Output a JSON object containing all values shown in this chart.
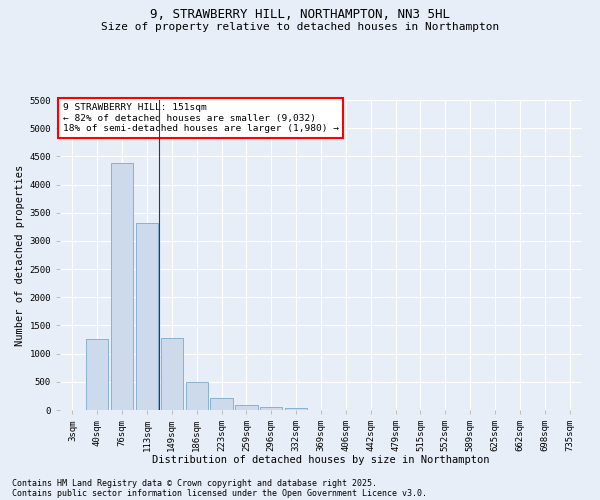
{
  "title1": "9, STRAWBERRY HILL, NORTHAMPTON, NN3 5HL",
  "title2": "Size of property relative to detached houses in Northampton",
  "xlabel": "Distribution of detached houses by size in Northampton",
  "ylabel": "Number of detached properties",
  "categories": [
    "3sqm",
    "40sqm",
    "76sqm",
    "113sqm",
    "149sqm",
    "186sqm",
    "223sqm",
    "259sqm",
    "296sqm",
    "332sqm",
    "369sqm",
    "406sqm",
    "442sqm",
    "479sqm",
    "515sqm",
    "552sqm",
    "589sqm",
    "625sqm",
    "662sqm",
    "698sqm",
    "735sqm"
  ],
  "values": [
    0,
    1260,
    4380,
    3310,
    1270,
    500,
    210,
    90,
    55,
    35,
    0,
    0,
    0,
    0,
    0,
    0,
    0,
    0,
    0,
    0,
    0
  ],
  "bar_color": "#ccdaeb",
  "bar_edge_color": "#7aaacb",
  "redline_x": 3.5,
  "annotation_title": "9 STRAWBERRY HILL: 151sqm",
  "annotation_line1": "← 82% of detached houses are smaller (9,032)",
  "annotation_line2": "18% of semi-detached houses are larger (1,980) →",
  "ylim": [
    0,
    5500
  ],
  "yticks": [
    0,
    500,
    1000,
    1500,
    2000,
    2500,
    3000,
    3500,
    4000,
    4500,
    5000,
    5500
  ],
  "footer1": "Contains HM Land Registry data © Crown copyright and database right 2025.",
  "footer2": "Contains public sector information licensed under the Open Government Licence v3.0.",
  "bg_color": "#e8eef8",
  "plot_bg_color": "#e8eef8",
  "grid_color": "#ffffff",
  "title1_fontsize": 9,
  "title2_fontsize": 8,
  "axis_label_fontsize": 7.5,
  "tick_fontsize": 6.5,
  "annotation_fontsize": 6.8,
  "footer_fontsize": 6
}
